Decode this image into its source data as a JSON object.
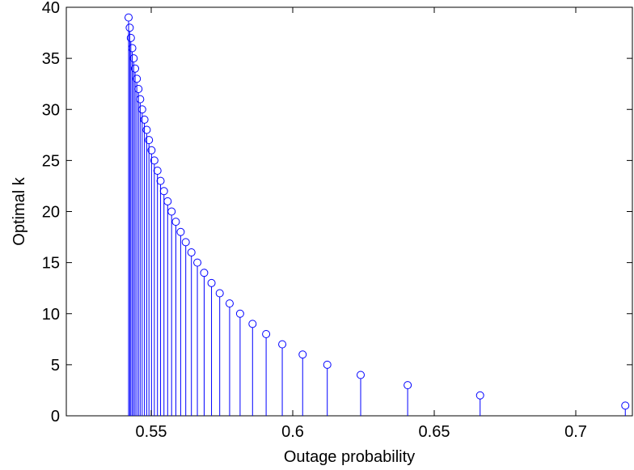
{
  "chart_data": {
    "type": "stem",
    "title": "",
    "xlabel": "Outage probability",
    "ylabel": "Optimal k",
    "xlim": [
      0.52,
      0.72
    ],
    "ylim": [
      0,
      40
    ],
    "xticks": [
      "0.55",
      "0.6",
      "0.65",
      "0.7"
    ],
    "yticks": [
      "0",
      "5",
      "10",
      "15",
      "20",
      "25",
      "30",
      "35",
      "40"
    ],
    "grid": false,
    "legend": "none",
    "marker": "circle",
    "color": "#0000ff",
    "points": [
      {
        "x": 0.7175,
        "y": 1
      },
      {
        "x": 0.6662,
        "y": 2
      },
      {
        "x": 0.6406,
        "y": 3
      },
      {
        "x": 0.624,
        "y": 4
      },
      {
        "x": 0.6122,
        "y": 5
      },
      {
        "x": 0.6035,
        "y": 6
      },
      {
        "x": 0.5963,
        "y": 7
      },
      {
        "x": 0.5906,
        "y": 8
      },
      {
        "x": 0.5858,
        "y": 9
      },
      {
        "x": 0.5814,
        "y": 10
      },
      {
        "x": 0.5777,
        "y": 11
      },
      {
        "x": 0.5742,
        "y": 12
      },
      {
        "x": 0.5713,
        "y": 13
      },
      {
        "x": 0.5687,
        "y": 14
      },
      {
        "x": 0.5663,
        "y": 15
      },
      {
        "x": 0.5642,
        "y": 16
      },
      {
        "x": 0.5622,
        "y": 17
      },
      {
        "x": 0.5604,
        "y": 18
      },
      {
        "x": 0.5587,
        "y": 19
      },
      {
        "x": 0.5572,
        "y": 20
      },
      {
        "x": 0.5558,
        "y": 21
      },
      {
        "x": 0.5545,
        "y": 22
      },
      {
        "x": 0.5533,
        "y": 23
      },
      {
        "x": 0.5522,
        "y": 24
      },
      {
        "x": 0.5511,
        "y": 25
      },
      {
        "x": 0.5501,
        "y": 26
      },
      {
        "x": 0.5492,
        "y": 27
      },
      {
        "x": 0.5484,
        "y": 28
      },
      {
        "x": 0.5476,
        "y": 29
      },
      {
        "x": 0.5468,
        "y": 30
      },
      {
        "x": 0.5461,
        "y": 31
      },
      {
        "x": 0.5455,
        "y": 32
      },
      {
        "x": 0.5449,
        "y": 33
      },
      {
        "x": 0.5443,
        "y": 34
      },
      {
        "x": 0.5438,
        "y": 35
      },
      {
        "x": 0.5433,
        "y": 36
      },
      {
        "x": 0.5428,
        "y": 37
      },
      {
        "x": 0.5424,
        "y": 38
      },
      {
        "x": 0.542,
        "y": 39
      }
    ]
  }
}
